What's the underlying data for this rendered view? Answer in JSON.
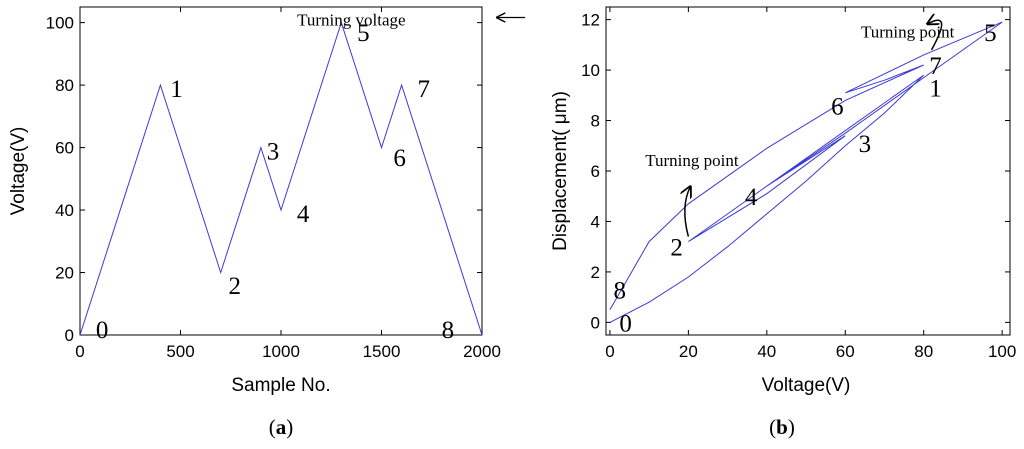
{
  "chart_data": [
    {
      "type": "line",
      "caption_letter": "a",
      "xlabel": "Sample No.",
      "ylabel": "Voltage(V)",
      "xlim": [
        0,
        2000
      ],
      "ylim": [
        0,
        105
      ],
      "xticks": [
        0,
        500,
        1000,
        1500,
        2000
      ],
      "yticks": [
        0,
        20,
        40,
        60,
        80,
        100
      ],
      "grid": false,
      "line_color": "#3a3ad8",
      "series": [
        {
          "x": [
            0,
            400,
            700,
            900,
            1000,
            1300,
            1500,
            1600,
            2000
          ],
          "y": [
            0,
            80,
            20,
            60,
            40,
            100,
            60,
            80,
            0
          ]
        }
      ],
      "point_labels": [
        {
          "text": "0",
          "x": 110,
          "y": 2
        },
        {
          "text": "1",
          "x": 480,
          "y": 79
        },
        {
          "text": "2",
          "x": 770,
          "y": 16
        },
        {
          "text": "3",
          "x": 960,
          "y": 59
        },
        {
          "text": "4",
          "x": 1110,
          "y": 39
        },
        {
          "text": "5",
          "x": 1410,
          "y": 97
        },
        {
          "text": "6",
          "x": 1590,
          "y": 57
        },
        {
          "text": "7",
          "x": 1710,
          "y": 79
        },
        {
          "text": "8",
          "x": 1830,
          "y": 2
        }
      ],
      "annotation": {
        "text": "Turning voltage",
        "x": 1080,
        "y": 101
      }
    },
    {
      "type": "line",
      "caption_letter": "b",
      "xlabel": "Voltage(V)",
      "ylabel": "Displacement( μm)",
      "xlim": [
        -1,
        102
      ],
      "ylim": [
        -0.5,
        12.5
      ],
      "xticks": [
        0,
        20,
        40,
        60,
        80,
        100
      ],
      "yticks": [
        0,
        2,
        4,
        6,
        8,
        10,
        12
      ],
      "grid": false,
      "line_color": "#3a3ad8",
      "series": [
        {
          "x": [
            0,
            10,
            20,
            30,
            40,
            50,
            60,
            70,
            80,
            20,
            40,
            60,
            40,
            60,
            80,
            100,
            80,
            60,
            70,
            80,
            60,
            40,
            20,
            10,
            0
          ],
          "y": [
            0,
            0.8,
            1.8,
            3.0,
            4.3,
            5.6,
            7.0,
            8.3,
            9.8,
            3.2,
            5.1,
            7.4,
            5.4,
            7.5,
            9.7,
            11.9,
            10.6,
            9.1,
            9.6,
            10.2,
            8.8,
            6.9,
            4.7,
            3.2,
            0.5
          ]
        }
      ],
      "point_labels": [
        {
          "text": "0",
          "x": 4,
          "y": 0.0
        },
        {
          "text": "1",
          "x": 83,
          "y": 9.3
        },
        {
          "text": "2",
          "x": 17,
          "y": 3.0
        },
        {
          "text": "3",
          "x": 65,
          "y": 7.1
        },
        {
          "text": "4",
          "x": 36,
          "y": 5.0
        },
        {
          "text": "5",
          "x": 97,
          "y": 11.5
        },
        {
          "text": "6",
          "x": 58,
          "y": 8.6
        },
        {
          "text": "7",
          "x": 83,
          "y": 10.2
        },
        {
          "text": "8",
          "x": 2.5,
          "y": 1.3
        }
      ],
      "annotations": [
        {
          "text": "Turning point",
          "x": 64,
          "y": 11.3,
          "arrow_to": [
            82,
            10.8
          ]
        },
        {
          "text": "Turning point",
          "x": 9,
          "y": 6.2,
          "arrow_to": [
            20,
            3.4
          ]
        }
      ]
    }
  ]
}
